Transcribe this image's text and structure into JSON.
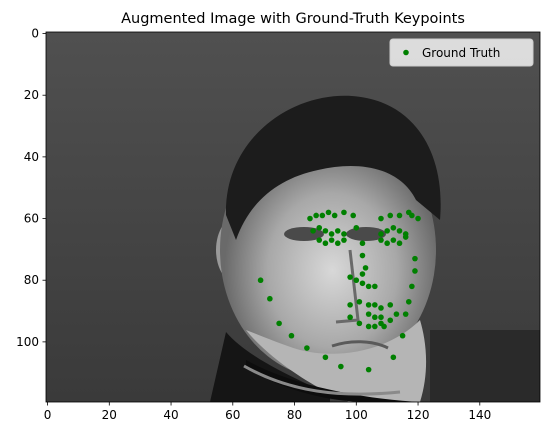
{
  "chart_data": {
    "type": "scatter",
    "title": "Augmented Image with Ground-Truth Keypoints",
    "xlabel": "",
    "ylabel": "",
    "xlim": [
      -0.5,
      159.5
    ],
    "ylim": [
      119.5,
      -0.5
    ],
    "y_inverted": true,
    "x_ticks": [
      0,
      20,
      40,
      60,
      80,
      100,
      120,
      140
    ],
    "y_ticks": [
      0,
      20,
      40,
      60,
      80,
      100
    ],
    "grid": false,
    "legend_position": "top-right",
    "background_image": "grayscale photo of a man's face with short dark hair, turtleneck",
    "series": [
      {
        "name": "Ground Truth",
        "color": "#008000",
        "points": [
          [
            69,
            80
          ],
          [
            72,
            86
          ],
          [
            75,
            94
          ],
          [
            79,
            98
          ],
          [
            84,
            102
          ],
          [
            90,
            105
          ],
          [
            95,
            108
          ],
          [
            104,
            109
          ],
          [
            112,
            105
          ],
          [
            115,
            98
          ],
          [
            116,
            91
          ],
          [
            117,
            87
          ],
          [
            118,
            82
          ],
          [
            119,
            77
          ],
          [
            119,
            73
          ],
          [
            85,
            60
          ],
          [
            87,
            59
          ],
          [
            89,
            59
          ],
          [
            91,
            58
          ],
          [
            93,
            59
          ],
          [
            96,
            58
          ],
          [
            99,
            59
          ],
          [
            108,
            60
          ],
          [
            111,
            59
          ],
          [
            114,
            59
          ],
          [
            117,
            58
          ],
          [
            118,
            59
          ],
          [
            120,
            60
          ],
          [
            100,
            63
          ],
          [
            102,
            68
          ],
          [
            102,
            72
          ],
          [
            103,
            76
          ],
          [
            102,
            78
          ],
          [
            98,
            79
          ],
          [
            100,
            80
          ],
          [
            102,
            81
          ],
          [
            104,
            82
          ],
          [
            106,
            82
          ],
          [
            86,
            64
          ],
          [
            88,
            63
          ],
          [
            90,
            64
          ],
          [
            92,
            65
          ],
          [
            94,
            64
          ],
          [
            96,
            65
          ],
          [
            88,
            67
          ],
          [
            90,
            68
          ],
          [
            92,
            67
          ],
          [
            94,
            68
          ],
          [
            96,
            67
          ],
          [
            108,
            65
          ],
          [
            110,
            64
          ],
          [
            112,
            63
          ],
          [
            114,
            64
          ],
          [
            116,
            65
          ],
          [
            108,
            67
          ],
          [
            110,
            68
          ],
          [
            112,
            67
          ],
          [
            114,
            68
          ],
          [
            116,
            66
          ],
          [
            98,
            88
          ],
          [
            101,
            87
          ],
          [
            104,
            88
          ],
          [
            106,
            88
          ],
          [
            108,
            89
          ],
          [
            111,
            88
          ],
          [
            113,
            91
          ],
          [
            111,
            93
          ],
          [
            108,
            94
          ],
          [
            104,
            95
          ],
          [
            101,
            94
          ],
          [
            98,
            92
          ],
          [
            104,
            91
          ],
          [
            106,
            92
          ],
          [
            108,
            92
          ],
          [
            106,
            95
          ],
          [
            109,
            95
          ]
        ]
      }
    ]
  }
}
